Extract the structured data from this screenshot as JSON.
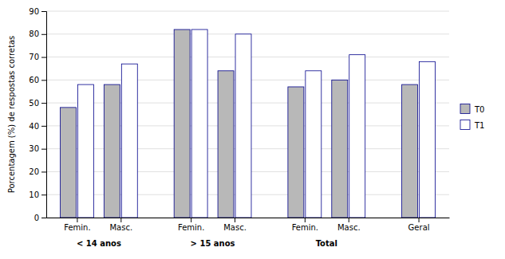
{
  "chart_data": {
    "type": "bar",
    "categories": [
      "Femin.",
      "Masc.",
      "Femin.",
      "Masc.",
      "Femin.",
      "Masc.",
      "Geral"
    ],
    "series": [
      {
        "name": "T0",
        "color": "#B8B8B8",
        "values": [
          48,
          58,
          82,
          64,
          57,
          60,
          58
        ]
      },
      {
        "name": "T1",
        "color": "#FFFFFF",
        "values": [
          58,
          67,
          82,
          80,
          64,
          71,
          68
        ]
      }
    ],
    "ylabel": "Porcentagem (%) de respostas corretas",
    "ylim": [
      0,
      90
    ],
    "yticks": [
      0,
      10,
      20,
      30,
      40,
      50,
      60,
      70,
      80,
      90
    ],
    "grid": true,
    "legend": "right",
    "annotations": [
      {
        "text": "< 14 anos",
        "x": [
          0,
          1
        ]
      },
      {
        "text": "> 15 anos",
        "x": [
          2,
          3
        ]
      },
      {
        "text": "Total",
        "x": [
          4,
          5
        ]
      }
    ]
  }
}
